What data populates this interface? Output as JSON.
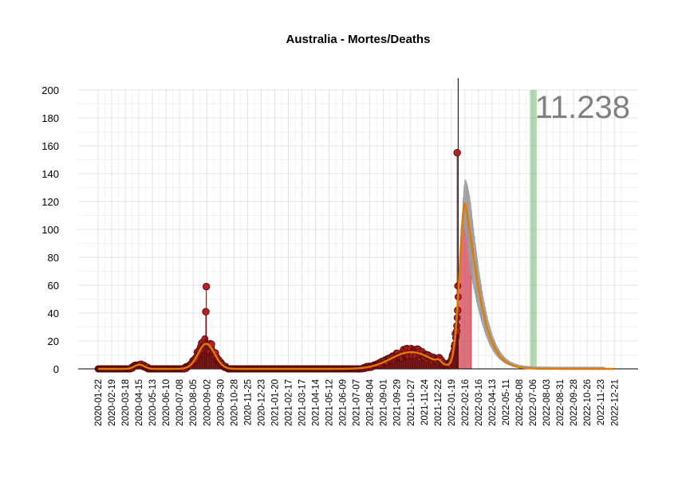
{
  "chart_data": {
    "type": "line",
    "title": "Australia - Mortes/Deaths",
    "annotation": "11.238",
    "xlabel": "",
    "ylabel": "",
    "ylim": [
      0,
      200
    ],
    "y_ticks": [
      0,
      20,
      40,
      60,
      80,
      100,
      120,
      140,
      160,
      180,
      200
    ],
    "x_ticks": [
      "2020-01-22",
      "2020-02-19",
      "2020-03-18",
      "2020-04-15",
      "2020-05-13",
      "2020-06-10",
      "2020-07-08",
      "2020-08-05",
      "2020-09-02",
      "2020-09-30",
      "2020-10-28",
      "2020-11-25",
      "2020-12-23",
      "2021-01-20",
      "2021-02-17",
      "2021-03-17",
      "2021-04-14",
      "2021-05-12",
      "2021-06-09",
      "2021-07-07",
      "2021-08-04",
      "2021-09-01",
      "2021-09-29",
      "2021-10-27",
      "2021-11-24",
      "2021-12-22",
      "2022-01-19",
      "2022-02-16",
      "2022-03-16",
      "2022-04-13",
      "2022-05-11",
      "2022-06-08",
      "2022-07-06",
      "2022-08-03",
      "2022-08-31",
      "2022-09-28",
      "2022-10-26",
      "2022-11-23",
      "2022-12-21"
    ],
    "grid": true,
    "colors": {
      "points": "#b22222",
      "point_stroke": "#5a0a0a",
      "smooth_line": "#e07b00",
      "forecast_band": "#a9a9a9",
      "red_band": "#d04050",
      "green_band": "#7fbf7f",
      "vline": "#000000",
      "annotation": "#808080"
    },
    "current_date": "2022-02-02",
    "red_band_range": [
      "2022-02-02",
      "2022-03-01"
    ],
    "green_band_range": [
      "2022-06-30",
      "2022-07-14"
    ],
    "highlighted_points": [
      {
        "date": "2020-09-01",
        "value": 59
      },
      {
        "date": "2020-08-31",
        "value": 41
      },
      {
        "date": "2022-01-31",
        "value": 155
      },
      {
        "date": "2022-02-01",
        "value": 42
      },
      {
        "date": "2022-01-30",
        "value": 27
      }
    ]
  }
}
